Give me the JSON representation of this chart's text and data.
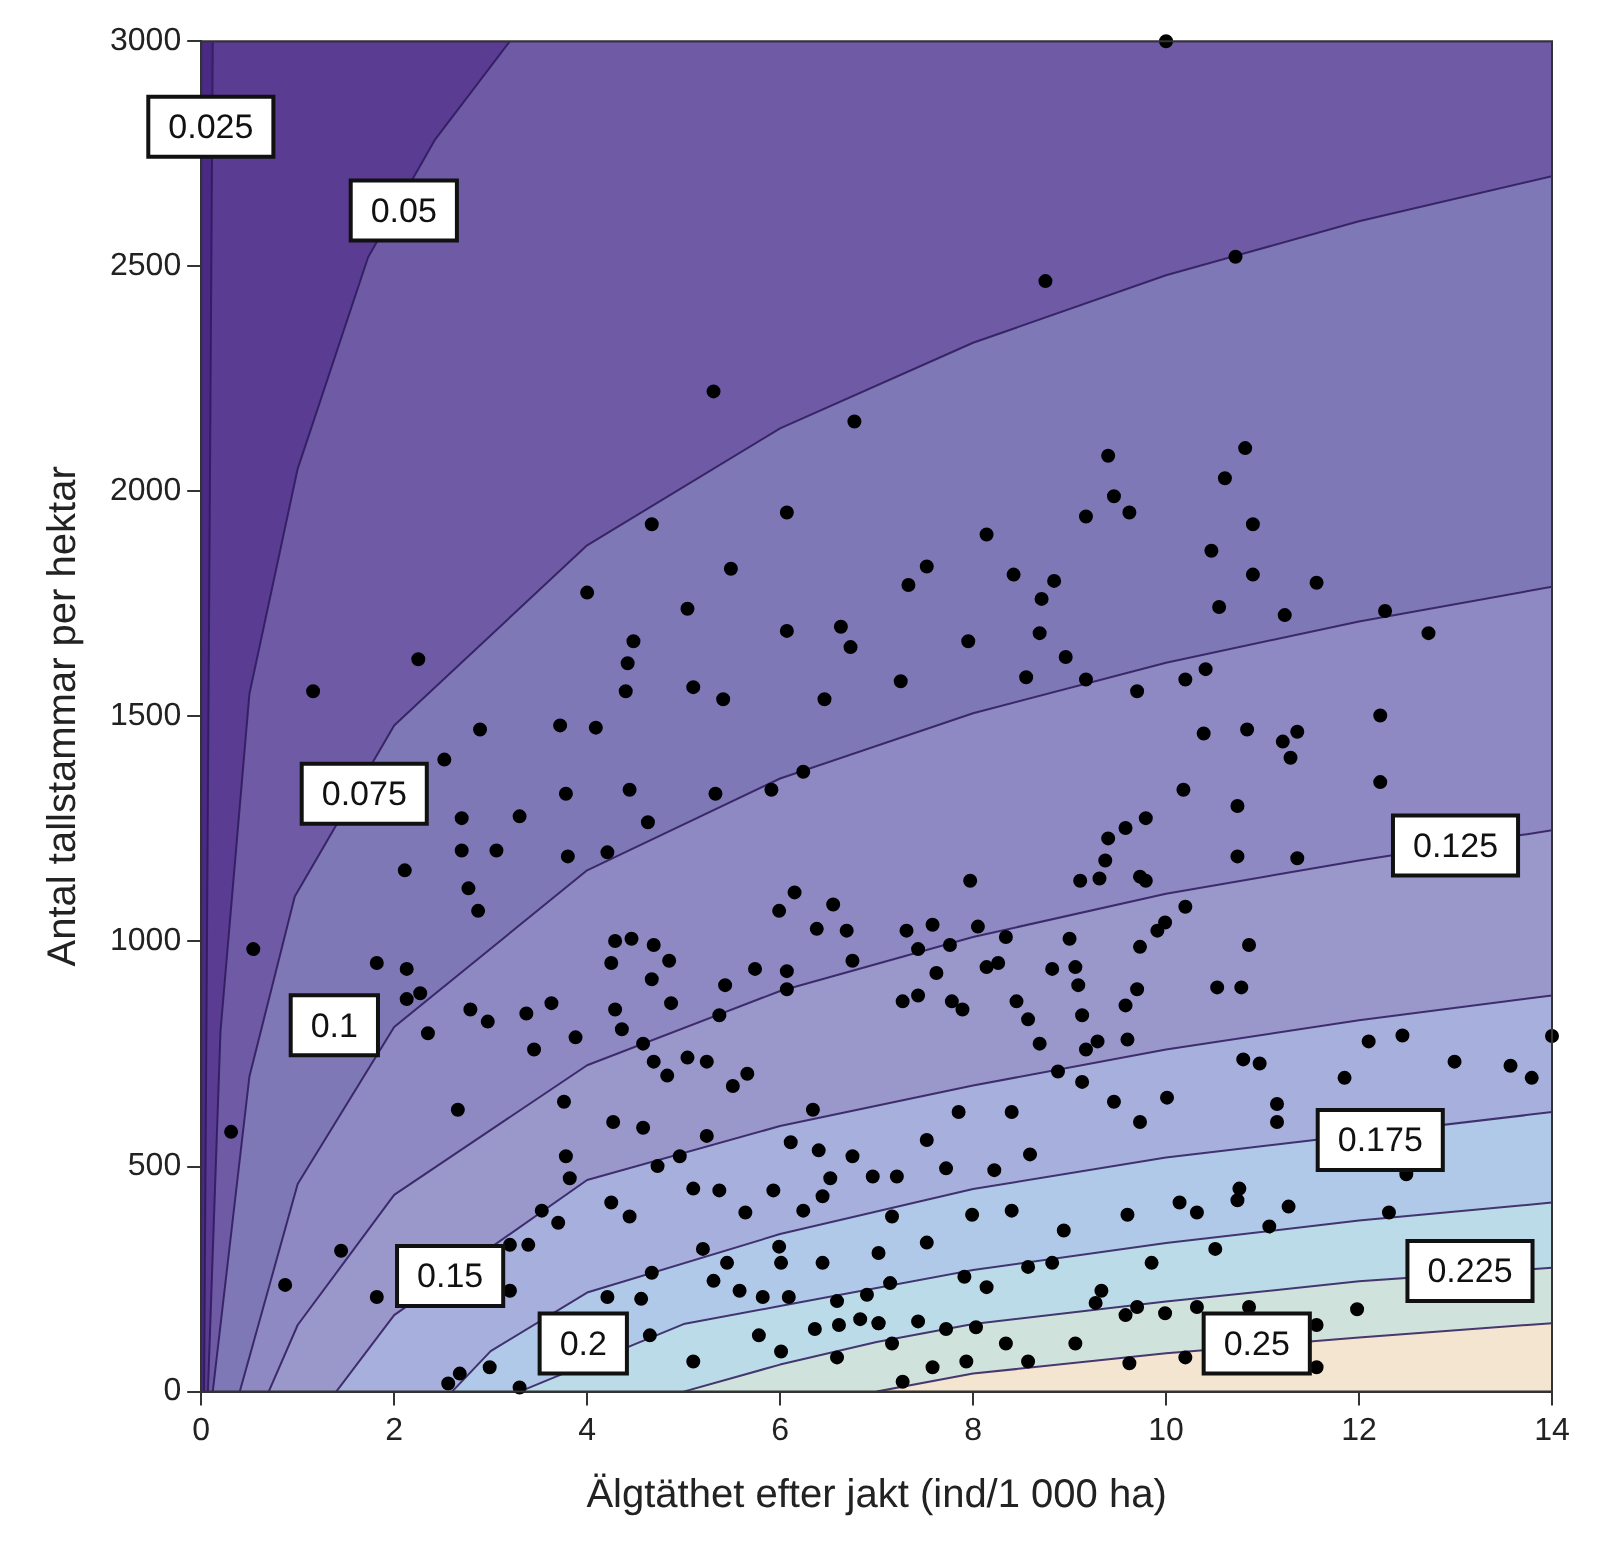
{
  "chart_data": {
    "type": "area",
    "xlabel": "Älgtäthet efter jakt (ind/1 000 ha)",
    "ylabel": "Antal tallstammar per hektar",
    "xlim": [
      0,
      14
    ],
    "ylim": [
      0,
      3000
    ],
    "xticks": [
      0,
      2,
      4,
      6,
      8,
      10,
      12,
      14
    ],
    "yticks": [
      0,
      500,
      1000,
      1500,
      2000,
      2500,
      3000
    ],
    "grid": false,
    "legend": false,
    "bands": [
      {
        "axis": "x",
        "from": 0,
        "to": 0.12,
        "color": "#4b2a86"
      }
    ],
    "annotations": [
      {
        "text": "0.025",
        "x": 0.1,
        "y": 2810
      },
      {
        "text": "0.05",
        "x": 2.1,
        "y": 2624
      },
      {
        "text": "0.075",
        "x": 1.69,
        "y": 1328
      },
      {
        "text": "0.1",
        "x": 1.38,
        "y": 814
      },
      {
        "text": "0.125",
        "x": 13,
        "y": 1213
      },
      {
        "text": "0.15",
        "x": 2.58,
        "y": 257
      },
      {
        "text": "0.175",
        "x": 12.22,
        "y": 559
      },
      {
        "text": "0.2",
        "x": 3.96,
        "y": 107
      },
      {
        "text": "0.225",
        "x": 13.15,
        "y": 268
      },
      {
        "text": "0.25",
        "x": 10.94,
        "y": 107
      }
    ],
    "series": [
      {
        "color": "#5b3c93",
        "x": [
          0.03,
          0.06,
          0.09,
          0.12,
          14
        ],
        "values": [
          0,
          1000,
          2000,
          3000,
          3000
        ]
      },
      {
        "color": "#6f5ba5",
        "x": [
          0.07,
          0.2,
          0.5,
          1,
          1.73,
          2.42,
          3.2,
          14
        ],
        "values": [
          0,
          800,
          1550,
          2050,
          2520,
          2780,
          3000,
          3000
        ]
      },
      {
        "color": "#7f78b6",
        "x": [
          0.12,
          0.5,
          0.97,
          2,
          4,
          6,
          8,
          10,
          12,
          14
        ],
        "values": [
          0,
          700,
          1100,
          1480,
          1880,
          2140,
          2330,
          2480,
          2600,
          2700
        ]
      },
      {
        "color": "#8e89c2",
        "x": [
          0.4,
          1,
          2,
          4,
          6,
          8,
          10,
          12,
          14
        ],
        "values": [
          0,
          461,
          810,
          1158,
          1362,
          1507,
          1619,
          1711,
          1788
        ]
      },
      {
        "color": "#9a97cb",
        "x": [
          0.7,
          1,
          2,
          4,
          6,
          8,
          10,
          12,
          14
        ],
        "values": [
          0,
          148,
          437,
          725,
          890,
          1010,
          1106,
          1180,
          1247
        ]
      },
      {
        "color": "#a7b0dd",
        "x": [
          1.4,
          2,
          4,
          6,
          8,
          10,
          12,
          14
        ],
        "values": [
          0,
          170,
          470,
          590,
          680,
          760,
          825,
          880
        ]
      },
      {
        "color": "#b1c9e8",
        "x": [
          2.6,
          3,
          4,
          6,
          8,
          10,
          14
        ],
        "values": [
          0,
          90,
          220,
          350,
          450,
          520,
          621
        ]
      },
      {
        "color": "#bcdbe8",
        "x": [
          3.3,
          5,
          6,
          8,
          10,
          12,
          14
        ],
        "values": [
          0,
          150,
          190,
          270,
          330,
          380,
          420
        ]
      },
      {
        "color": "#cfe3dc",
        "x": [
          5,
          6,
          7,
          8,
          10,
          12,
          14
        ],
        "values": [
          0,
          60,
          110,
          150,
          200,
          245,
          275
        ]
      },
      {
        "color": "#f3e5d0",
        "x": [
          7,
          8,
          10,
          12,
          14
        ],
        "values": [
          0,
          40,
          85,
          120,
          152
        ]
      },
      {
        "type": "scatter",
        "color": "#000000",
        "marker": "circle",
        "x": [
          5.31,
          6.77,
          4.67,
          6.07,
          5.49,
          4.0,
          5.04,
          6.07,
          6.63,
          6.73,
          2.25,
          4.48,
          1.16,
          4.42,
          5.1,
          4.4,
          5.41,
          6.46,
          10.0,
          10.72,
          8.75,
          9.4,
          10.82,
          10.61,
          9.46,
          9.62,
          9.17,
          8.14,
          10.9,
          10.47,
          7.52,
          8.42,
          8.84,
          7.33,
          8.71,
          10.9,
          11.56,
          10.55,
          11.23,
          12.27,
          12.72,
          8.69,
          7.95,
          8.96,
          8.55,
          7.25,
          9.17,
          10.2,
          10.41,
          9.7,
          14.0,
          13.57,
          0.54,
          0.31,
          2.89,
          3.72,
          4.09,
          2.52,
          3.78,
          4.44,
          2.7,
          3.3,
          2.11,
          2.7,
          3.06,
          3.8,
          4.21,
          2.77,
          2.87,
          4.63,
          5.33,
          5.91,
          6.24,
          1.82,
          2.13,
          2.13,
          2.27,
          2.35,
          2.79,
          2.97,
          3.37,
          3.63,
          3.45,
          3.88,
          4.29,
          4.46,
          4.69,
          4.67,
          4.85,
          4.87,
          4.25,
          4.29,
          4.36,
          4.58,
          4.69,
          4.83,
          5.04,
          5.24,
          5.37,
          5.43,
          5.74,
          6.07,
          6.07,
          6.38,
          6.69,
          6.75,
          5.99,
          6.15,
          6.55,
          3.76,
          2.66,
          4.27,
          4.58,
          5.24,
          5.51,
          5.66,
          3.78,
          3.82,
          4.25,
          4.73,
          4.96,
          5.1,
          5.37,
          5.93,
          6.11,
          6.34,
          6.4,
          6.75,
          6.24,
          6.44,
          6.52,
          6.96,
          3.53,
          3.7,
          4.44,
          3.39,
          3.2,
          3.2,
          1.45,
          0.87,
          1.82,
          4.21,
          4.56,
          4.67,
          5.2,
          5.45,
          5.64,
          5.99,
          6.01,
          6.44,
          5.31,
          5.58,
          5.82,
          6.09,
          6.59,
          6.9,
          4.65,
          5.78,
          6.36,
          6.61,
          6.83,
          7.02,
          5.1,
          6.01,
          6.59,
          2.56,
          2.68,
          2.99,
          3.3,
          12.22,
          12.22,
          11.36,
          11.21,
          11.29,
          10.84,
          10.39,
          10.74,
          11.36,
          10.74,
          10.86,
          10.53,
          10.78,
          10.18,
          10.2,
          9.99,
          9.91,
          9.73,
          9.7,
          9.58,
          9.6,
          9.37,
          9.4,
          9.58,
          9.79,
          9.79,
          9.73,
          9.31,
          9.11,
          12.1,
          12.45,
          12.99,
          13.79,
          11.85,
          10.8,
          10.97,
          11.15,
          11.15,
          12.49,
          12.31,
          11.98,
          11.27,
          11.07,
          10.51,
          10.74,
          10.76,
          10.86,
          11.56,
          11.56,
          10.2,
          9.62,
          10.32,
          9.99,
          9.7,
          9.58,
          10.01,
          9.73,
          9.46,
          9.13,
          8.88,
          8.69,
          9.17,
          9.29,
          9.13,
          8.57,
          8.45,
          8.14,
          8.82,
          9.06,
          9.09,
          9.0,
          8.26,
          7.97,
          8.05,
          8.34,
          7.76,
          7.58,
          7.31,
          7.43,
          7.62,
          7.27,
          7.43,
          7.78,
          7.89,
          7.85,
          7.52,
          7.21,
          7.72,
          8.22,
          8.4,
          8.59,
          7.16,
          7.02,
          7.52,
          7.99,
          8.4,
          8.94,
          8.57,
          8.82,
          9.33,
          9.27,
          8.14,
          7.91,
          7.14,
          7.02,
          7.43,
          7.72,
          8.03,
          8.34,
          8.57,
          7.93,
          7.58,
          7.27,
          7.16,
          9.06,
          9.85,
          9.6,
          10.14,
          10.32
        ],
        "values": [
          2222,
          2155,
          1927,
          1953,
          1828,
          1775,
          1739,
          1690,
          1699,
          1654,
          1627,
          1667,
          1556,
          1618,
          1565,
          1556,
          1538,
          1538,
          3000,
          2521,
          2467,
          2079,
          2096,
          2029,
          1989,
          1953,
          1944,
          1904,
          1927,
          1868,
          1833,
          1815,
          1801,
          1792,
          1761,
          1815,
          1797,
          1743,
          1725,
          1734,
          1685,
          1685,
          1667,
          1632,
          1587,
          1578,
          1582,
          1582,
          1605,
          1556,
          790,
          724,
          983,
          577,
          1471,
          1480,
          1475,
          1404,
          1328,
          1337,
          1274,
          1278,
          1158,
          1202,
          1202,
          1189,
          1198,
          1118,
          1068,
          1265,
          1328,
          1337,
          1377,
          952,
          939,
          872,
          885,
          796,
          849,
          822,
          840,
          863,
          760,
          787,
          1001,
          1006,
          992,
          916,
          957,
          863,
          952,
          849,
          805,
          773,
          733,
          702,
          742,
          733,
          836,
          903,
          939,
          934,
          894,
          1028,
          1024,
          957,
          1068,
          1109,
          1082,
          644,
          626,
          599,
          586,
          568,
          679,
          706,
          523,
          474,
          420,
          501,
          523,
          451,
          447,
          447,
          554,
          626,
          536,
          523,
          402,
          434,
          474,
          478,
          402,
          375,
          389,
          326,
          326,
          224,
          313,
          237,
          210,
          210,
          206,
          264,
          317,
          286,
          398,
          322,
          286,
          286,
          246,
          224,
          210,
          210,
          201,
          215,
          125,
          125,
          139,
          148,
          161,
          152,
          67,
          89,
          76,
          18,
          40,
          54,
          9,
          1502,
          1354,
          1466,
          1444,
          1408,
          1471,
          1462,
          1301,
          1185,
          1189,
          992,
          898,
          898,
          1337,
          1077,
          1042,
          1024,
          988,
          894,
          858,
          782,
          1180,
          1229,
          1252,
          1274,
          1135,
          1144,
          1140,
          1135,
          778,
          791,
          733,
          697,
          697,
          738,
          729,
          639,
          599,
          483,
          398,
          183,
          411,
          367,
          317,
          425,
          451,
          188,
          148,
          54,
          76,
          63,
          188,
          174,
          188,
          170,
          653,
          599,
          644,
          688,
          711,
          773,
          760,
          778,
          836,
          827,
          867,
          943,
          939,
          943,
          903,
          1006,
          952,
          1135,
          1033,
          1010,
          992,
          1037,
          1024,
          983,
          930,
          867,
          880,
          867,
          849,
          621,
          559,
          478,
          496,
          492,
          621,
          527,
          389,
          308,
          331,
          393,
          402,
          358,
          277,
          286,
          224,
          197,
          232,
          255,
          241,
          152,
          156,
          139,
          143,
          107,
          67,
          67,
          54,
          22,
          107,
          107,
          286,
          393,
          420,
          398
        ]
      }
    ]
  }
}
